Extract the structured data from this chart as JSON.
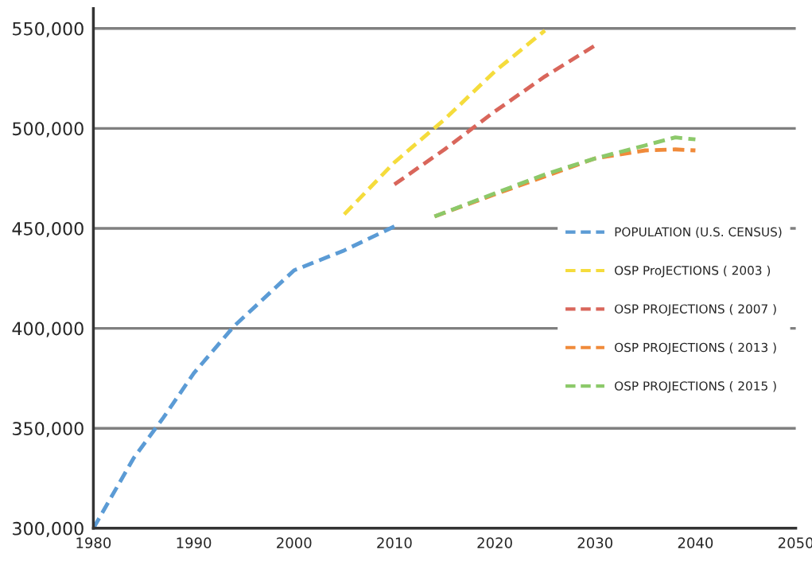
{
  "chart_data": {
    "type": "line",
    "xlim": [
      1980,
      2050
    ],
    "ylim": [
      300000,
      560000
    ],
    "xticks": [
      1980,
      1990,
      2000,
      2010,
      2020,
      2030,
      2040,
      2050
    ],
    "yticks": [
      {
        "value": 300000,
        "label": "300,000"
      },
      {
        "value": 350000,
        "label": "350,000"
      },
      {
        "value": 400000,
        "label": "400,000"
      },
      {
        "value": 450000,
        "label": "450,000"
      },
      {
        "value": 500000,
        "label": "500,000"
      },
      {
        "value": 550000,
        "label": "550,000"
      }
    ],
    "grid": "y",
    "legend": "right",
    "line_style": "dashed",
    "marker": "none",
    "series": [
      {
        "name": "POPULATION (U.S. CENSUS)",
        "color": "#5b9bd5",
        "x": [
          1980,
          1984,
          1987,
          1990,
          1994,
          2000,
          2005,
          2010
        ],
        "values": [
          300000,
          335000,
          355500,
          377500,
          401000,
          429000,
          439000,
          451000
        ]
      },
      {
        "name": "OSP ProJECTIONS ( 2003 )",
        "color": "#f5dc3c",
        "x": [
          2005,
          2010,
          2015,
          2020,
          2025
        ],
        "values": [
          457000,
          483000,
          504500,
          528500,
          549000
        ]
      },
      {
        "name": "OSP PROJECTIONS ( 2007 )",
        "color": "#d9665b",
        "x": [
          2010,
          2015,
          2020,
          2025,
          2030
        ],
        "values": [
          472000,
          489500,
          508500,
          526000,
          541500
        ]
      },
      {
        "name": "OSP PROJECTIONS ( 2013 )",
        "color": "#f08a3a",
        "x": [
          2014,
          2020,
          2025,
          2030,
          2035,
          2038,
          2040
        ],
        "values": [
          456000,
          467000,
          476000,
          485000,
          489000,
          489500,
          489000
        ]
      },
      {
        "name": "OSP PROJECTIONS ( 2015 )",
        "color": "#8cc96a",
        "x": [
          2014,
          2020,
          2025,
          2030,
          2035,
          2038,
          2040
        ],
        "values": [
          456000,
          467500,
          477000,
          485000,
          491500,
          495500,
          494500
        ]
      }
    ]
  }
}
